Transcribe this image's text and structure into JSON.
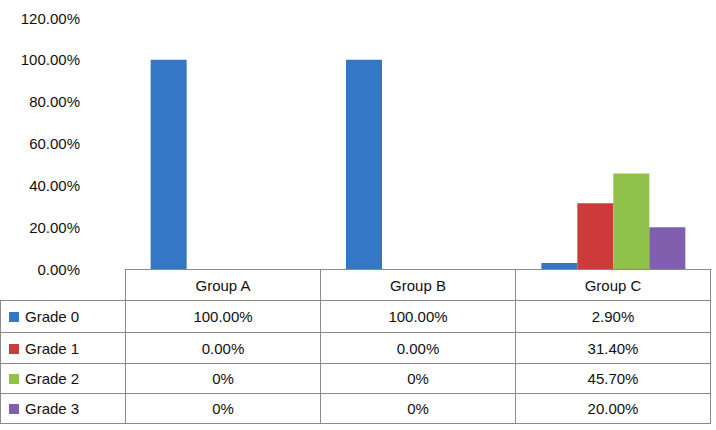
{
  "chart_data": {
    "type": "bar",
    "categories": [
      "Group A",
      "Group B",
      "Group C"
    ],
    "series": [
      {
        "name": "Grade  0",
        "color": "#3478c5",
        "values": [
          100,
          100,
          2.9
        ],
        "value_labels": [
          "100.00%",
          "100.00%",
          "2.90%"
        ]
      },
      {
        "name": "Grade 1",
        "color": "#cc3a3a",
        "values": [
          0,
          0,
          31.4
        ],
        "value_labels": [
          "0.00%",
          "0.00%",
          "31.40%"
        ]
      },
      {
        "name": "Grade 2",
        "color": "#8fc14b",
        "values": [
          0,
          0,
          45.7
        ],
        "value_labels": [
          "0%",
          "0%",
          "45.70%"
        ]
      },
      {
        "name": "Grade 3",
        "color": "#7f5fae",
        "values": [
          0,
          0,
          20
        ],
        "value_labels": [
          "0%",
          "0%",
          "20.00%"
        ]
      }
    ],
    "ylim": [
      0,
      120
    ],
    "yticks": [
      {
        "value": 0,
        "label": "0.00%"
      },
      {
        "value": 20,
        "label": "20.00%"
      },
      {
        "value": 40,
        "label": "40.00%"
      },
      {
        "value": 60,
        "label": "60.00%"
      },
      {
        "value": 80,
        "label": "80.00%"
      },
      {
        "value": 100,
        "label": "100.00%"
      },
      {
        "value": 120,
        "label": "120.00%"
      }
    ],
    "grid": false
  }
}
